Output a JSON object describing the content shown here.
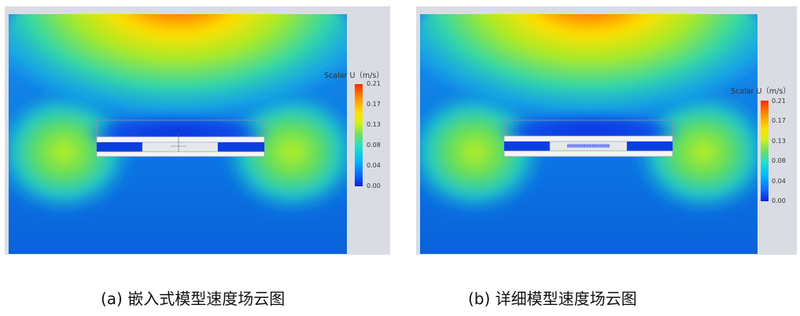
{
  "figures": [
    {
      "id": "a",
      "legend_title": "Scalar U（m/s）",
      "ticks": [
        "0.21",
        "0.17",
        "0.13",
        "0.08",
        "0.04",
        "0.00"
      ],
      "caption": "(a) 嵌入式模型速度场云图"
    },
    {
      "id": "b",
      "legend_title": "Scalar U（m/s）",
      "ticks": [
        "0.21",
        "0.17",
        "0.13",
        "0.08",
        "0.04",
        "0.00"
      ],
      "caption": "(b) 详细模型速度场云图"
    }
  ],
  "colors": {
    "low": "#0a4fe6",
    "mid": "#1de0d0",
    "high_mid": "#ffe000",
    "high": "#ff2a00",
    "background": "#d9dde3"
  }
}
